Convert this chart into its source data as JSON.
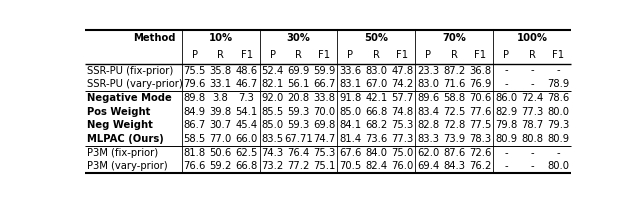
{
  "groups": [
    "10%",
    "30%",
    "50%",
    "70%",
    "100%"
  ],
  "subheaders": [
    "P",
    "R",
    "F1"
  ],
  "rows": [
    {
      "method": "SSR-PU (fix-prior)",
      "bold": false,
      "values": [
        [
          "75.5",
          "35.8",
          "48.6"
        ],
        [
          "52.4",
          "69.9",
          "59.9"
        ],
        [
          "33.6",
          "83.0",
          "47.8"
        ],
        [
          "23.3",
          "87.2",
          "36.8"
        ],
        [
          "-",
          "-",
          "-"
        ]
      ]
    },
    {
      "method": "SSR-PU (vary-prior)",
      "bold": false,
      "values": [
        [
          "79.6",
          "33.1",
          "46.7"
        ],
        [
          "82.1",
          "56.1",
          "66.7"
        ],
        [
          "83.1",
          "67.0",
          "74.2"
        ],
        [
          "83.0",
          "71.6",
          "76.9"
        ],
        [
          "-",
          "-",
          "78.9"
        ]
      ]
    },
    {
      "method": "Negative Mode",
      "bold": true,
      "values": [
        [
          "89.8",
          "3.8",
          "7.3"
        ],
        [
          "92.0",
          "20.8",
          "33.8"
        ],
        [
          "91.8",
          "42.1",
          "57.7"
        ],
        [
          "89.6",
          "58.8",
          "70.6"
        ],
        [
          "86.0",
          "72.4",
          "78.6"
        ]
      ]
    },
    {
      "method": "Pos Weight",
      "bold": true,
      "values": [
        [
          "84.9",
          "39.8",
          "54.1"
        ],
        [
          "85.5",
          "59.3",
          "70.0"
        ],
        [
          "85.0",
          "66.8",
          "74.8"
        ],
        [
          "83.4",
          "72.5",
          "77.6"
        ],
        [
          "82.9",
          "77.3",
          "80.0"
        ]
      ]
    },
    {
      "method": "Neg Weight",
      "bold": true,
      "values": [
        [
          "86.7",
          "30.7",
          "45.4"
        ],
        [
          "85.0",
          "59.3",
          "69.8"
        ],
        [
          "84.1",
          "68.2",
          "75.3"
        ],
        [
          "82.8",
          "72.8",
          "77.5"
        ],
        [
          "79.8",
          "78.7",
          "79.3"
        ]
      ]
    },
    {
      "method": "MLPAC (Ours)",
      "bold": true,
      "values": [
        [
          "58.5",
          "77.0",
          "66.0"
        ],
        [
          "83.5",
          "67.71",
          "74.7"
        ],
        [
          "81.4",
          "73.6",
          "77.3"
        ],
        [
          "83.3",
          "73.9",
          "78.3"
        ],
        [
          "80.9",
          "80.8",
          "80.9"
        ]
      ]
    },
    {
      "method": "P3M (fix-prior)",
      "bold": false,
      "values": [
        [
          "81.8",
          "50.6",
          "62.5"
        ],
        [
          "74.3",
          "76.4",
          "75.3"
        ],
        [
          "67.6",
          "84.0",
          "75.0"
        ],
        [
          "62.0",
          "87.6",
          "72.6"
        ],
        [
          "-",
          "-",
          "-"
        ]
      ]
    },
    {
      "method": "P3M (vary-prior)",
      "bold": false,
      "values": [
        [
          "76.6",
          "59.2",
          "66.8"
        ],
        [
          "73.2",
          "77.2",
          "75.1"
        ],
        [
          "70.5",
          "82.4",
          "76.0"
        ],
        [
          "69.4",
          "84.3",
          "76.2"
        ],
        [
          "-",
          "-",
          "80.0"
        ]
      ]
    }
  ],
  "background_color": "#ffffff",
  "font_size": 7.2
}
